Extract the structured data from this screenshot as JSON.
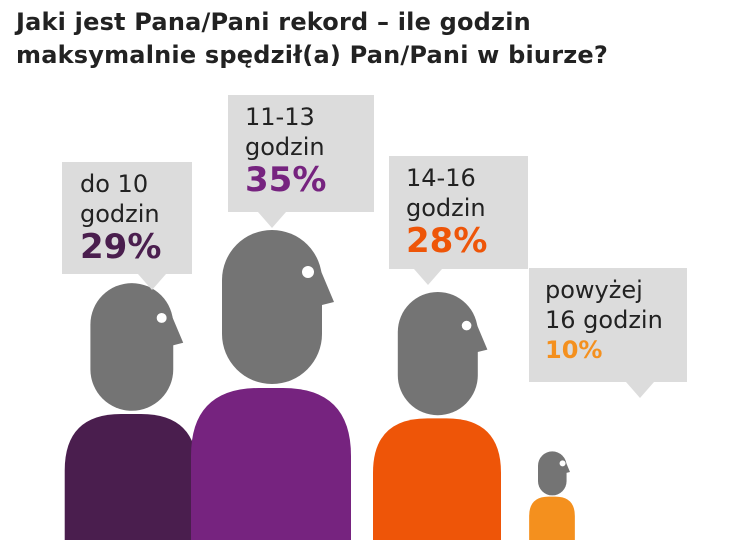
{
  "title_line1": "Jaki jest Pana/Pani rekord – ile godzin",
  "title_line2": "maksymalnie spędził(a) Pan/Pani w biurze?",
  "chart_data": {
    "type": "pictograph",
    "title": "Jaki jest Pana/Pani rekord – ile godzin maksymalnie spędził(a) Pan/Pani w biurze?",
    "categories": [
      "do 10 godzin",
      "11-13 godzin",
      "14-16 godzin",
      "powyżej 16 godzin"
    ],
    "values": [
      29,
      35,
      28,
      10
    ],
    "value_labels": [
      "29%",
      "35%",
      "28%",
      "10%"
    ],
    "label_lines": [
      [
        "do 10",
        "godzin"
      ],
      [
        "11-13",
        "godzin"
      ],
      [
        "14-16",
        "godzin"
      ],
      [
        "powyżej",
        "16 godzin"
      ]
    ],
    "unit": "%",
    "colors": [
      "#4a1e4e",
      "#76237f",
      "#ee5508",
      "#f4901e"
    ],
    "value_colors": [
      "#4a1e4e",
      "#76237f",
      "#ee5508",
      "#f4901e"
    ],
    "head_color": "#747474",
    "bubble_color": "#dcdcdc"
  }
}
